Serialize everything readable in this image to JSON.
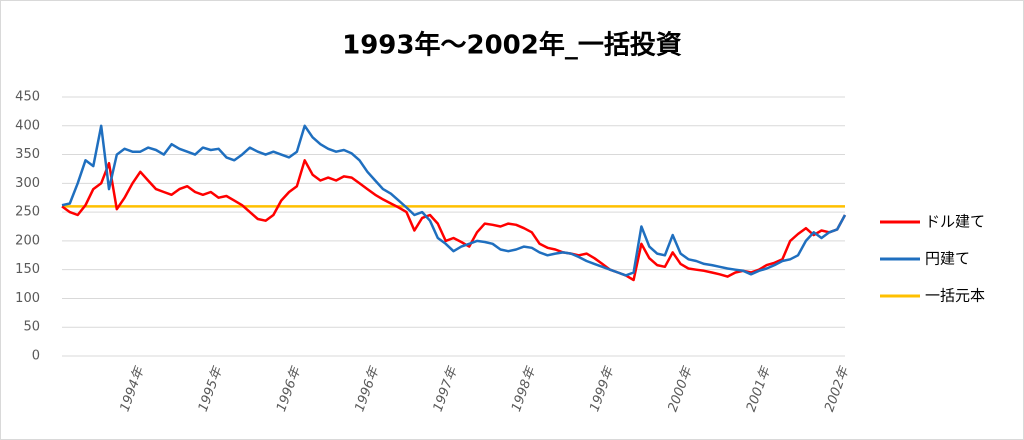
{
  "chart_data": {
    "type": "line",
    "title": "1993年～2002年_一括投資",
    "categories": [
      null,
      null,
      null,
      null,
      null,
      null,
      null,
      null,
      null,
      null,
      "1994年",
      null,
      null,
      null,
      null,
      null,
      null,
      null,
      null,
      null,
      "1995年",
      null,
      null,
      null,
      null,
      null,
      null,
      null,
      null,
      null,
      "1996年",
      null,
      null,
      null,
      null,
      null,
      null,
      null,
      null,
      null,
      "1996年",
      null,
      null,
      null,
      null,
      null,
      null,
      null,
      null,
      null,
      "1997年",
      null,
      null,
      null,
      null,
      null,
      null,
      null,
      null,
      null,
      "1998年",
      null,
      null,
      null,
      null,
      null,
      null,
      null,
      null,
      null,
      "1999年",
      null,
      null,
      null,
      null,
      null,
      null,
      null,
      null,
      null,
      "2000年",
      null,
      null,
      null,
      null,
      null,
      null,
      null,
      null,
      null,
      "2001年",
      null,
      null,
      null,
      null,
      null,
      null,
      null,
      null,
      null,
      "2002年"
    ],
    "series": [
      {
        "name": "ドル建て",
        "color": "#ff0000",
        "values": [
          260,
          250,
          245,
          262,
          290,
          300,
          335,
          255,
          275,
          300,
          320,
          305,
          290,
          285,
          280,
          290,
          295,
          285,
          280,
          285,
          275,
          278,
          270,
          262,
          250,
          238,
          235,
          245,
          270,
          285,
          295,
          340,
          315,
          305,
          310,
          305,
          312,
          310,
          300,
          290,
          280,
          272,
          265,
          258,
          250,
          218,
          240,
          245,
          230,
          200,
          205,
          198,
          190,
          215,
          230,
          228,
          225,
          230,
          228,
          222,
          215,
          195,
          188,
          185,
          180,
          178,
          175,
          178,
          170,
          160,
          150,
          145,
          140,
          132,
          195,
          170,
          158,
          155,
          180,
          160,
          152,
          150,
          148,
          145,
          142,
          138,
          145,
          148,
          145,
          150,
          158,
          162,
          168,
          200,
          212,
          222,
          210,
          218,
          215,
          220,
          245
        ]
      },
      {
        "name": "円建て",
        "color": "#1f6fbf",
        "values": [
          262,
          265,
          300,
          340,
          330,
          400,
          290,
          350,
          360,
          355,
          355,
          362,
          358,
          350,
          368,
          360,
          355,
          350,
          362,
          358,
          360,
          345,
          340,
          350,
          362,
          355,
          350,
          355,
          350,
          345,
          355,
          400,
          380,
          368,
          360,
          355,
          358,
          352,
          340,
          320,
          305,
          290,
          282,
          270,
          258,
          245,
          250,
          235,
          205,
          195,
          182,
          190,
          195,
          200,
          198,
          195,
          185,
          182,
          185,
          190,
          188,
          180,
          175,
          178,
          180,
          178,
          172,
          165,
          160,
          155,
          150,
          145,
          140,
          145,
          225,
          190,
          178,
          175,
          210,
          178,
          168,
          165,
          160,
          158,
          155,
          152,
          150,
          148,
          142,
          148,
          152,
          158,
          165,
          168,
          175,
          200,
          215,
          205,
          215,
          220,
          245
        ]
      },
      {
        "name": "一括元本",
        "color": "#ffc000",
        "values": [
          260,
          260,
          260,
          260,
          260,
          260,
          260,
          260,
          260,
          260,
          260,
          260,
          260,
          260,
          260,
          260,
          260,
          260,
          260,
          260,
          260,
          260,
          260,
          260,
          260,
          260,
          260,
          260,
          260,
          260,
          260,
          260,
          260,
          260,
          260,
          260,
          260,
          260,
          260,
          260,
          260,
          260,
          260,
          260,
          260,
          260,
          260,
          260,
          260,
          260,
          260,
          260,
          260,
          260,
          260,
          260,
          260,
          260,
          260,
          260,
          260,
          260,
          260,
          260,
          260,
          260,
          260,
          260,
          260,
          260,
          260,
          260,
          260,
          260,
          260,
          260,
          260,
          260,
          260,
          260,
          260,
          260,
          260,
          260,
          260,
          260,
          260,
          260,
          260,
          260,
          260,
          260,
          260,
          260,
          260,
          260,
          260,
          260,
          260,
          260,
          260
        ]
      }
    ],
    "ylim": [
      0,
      450
    ],
    "yticks": [
      0,
      50,
      100,
      150,
      200,
      250,
      300,
      350,
      400,
      450
    ],
    "grid": true,
    "legend": "right"
  }
}
